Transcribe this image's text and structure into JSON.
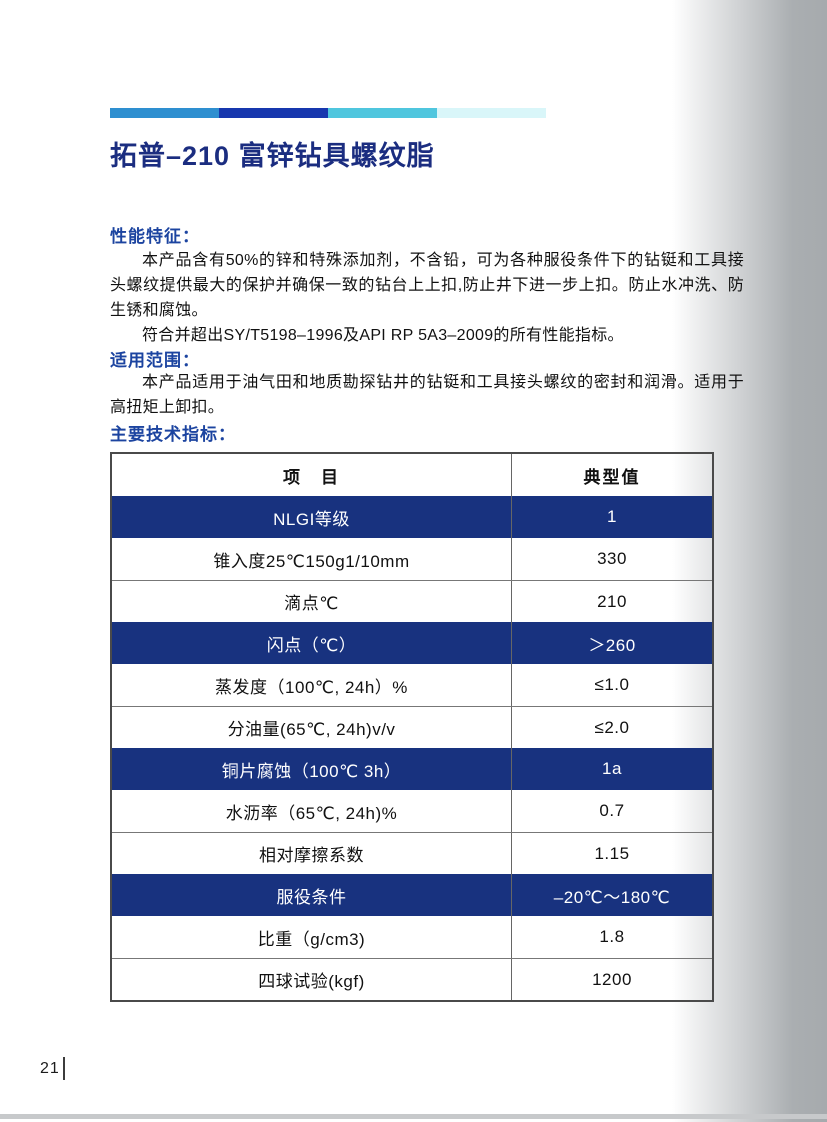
{
  "title": "拓普–210 富锌钻具螺纹脂",
  "decor": {
    "bar_colors": [
      "#2e8fd0",
      "#1737ae",
      "#4fc6de",
      "#d9f6f9"
    ],
    "highlight_row_color": "#18327f",
    "heading_color": "#1c44a0",
    "title_color": "#1b2d80"
  },
  "sections": {
    "features": {
      "heading": "性能特征：",
      "para1": "本产品含有50%的锌和特殊添加剂，不含铅，可为各种服役条件下的钻铤和工具接头螺纹提供最大的保护并确保一致的钻台上上扣,防止井下进一步上扣。防止水冲洗、防生锈和腐蚀。",
      "para2": "符合并超出SY/T5198–1996及API RP 5A3–2009的所有性能指标。"
    },
    "scope": {
      "heading": "适用范围：",
      "para1": "本产品适用于油气田和地质勘探钻井的钻铤和工具接头螺纹的密封和润滑。适用于高扭矩上卸扣。"
    },
    "specs": {
      "heading": "主要技术指标："
    }
  },
  "table": {
    "headers": {
      "item": "项　目",
      "value": "典型值"
    },
    "rows": [
      {
        "item": "NLGI等级",
        "value": "1"
      },
      {
        "item": "锥入度25℃150g1/10mm",
        "value": "330"
      },
      {
        "item": "滴点℃",
        "value": "210"
      },
      {
        "item": "闪点（℃）",
        "value": "＞260"
      },
      {
        "item": "蒸发度（100℃, 24h）%",
        "value": "≤1.0"
      },
      {
        "item": "分油量(65℃, 24h)v/v",
        "value": "≤2.0"
      },
      {
        "item": "铜片腐蚀（100℃ 3h）",
        "value": "1a"
      },
      {
        "item": "水沥率（65℃, 24h)%",
        "value": "0.7"
      },
      {
        "item": "相对摩擦系数",
        "value": "1.15"
      },
      {
        "item": "服役条件",
        "value": "–20℃～180℃"
      },
      {
        "item": "比重（g/cm3)",
        "value": "1.8"
      },
      {
        "item": "四球试验(kgf)",
        "value": "1200"
      }
    ]
  },
  "footer": {
    "page_number": "21"
  }
}
